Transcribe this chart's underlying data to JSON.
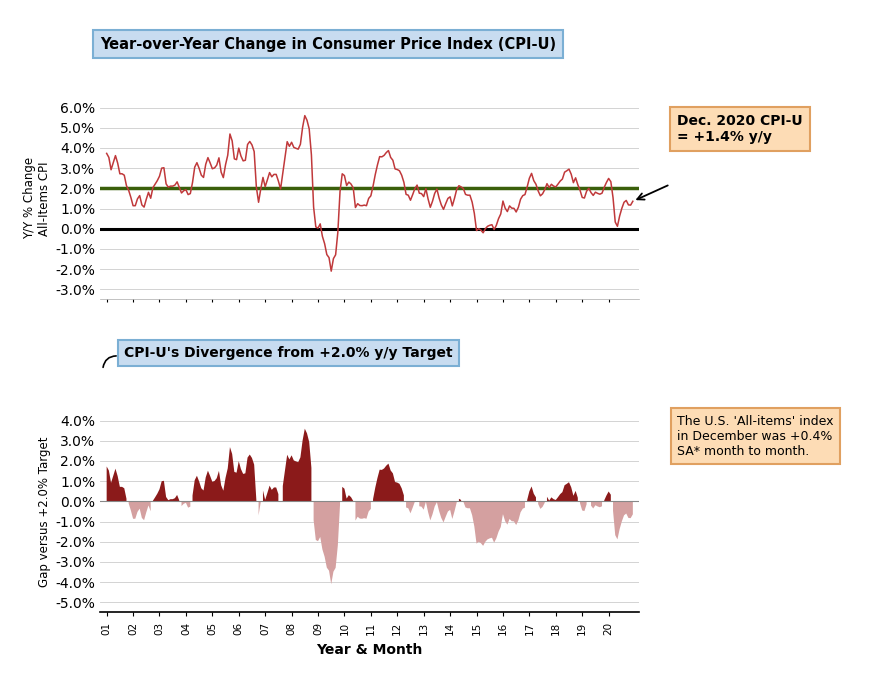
{
  "title1": "Year-over-Year Change in Consumer Price Index (CPI-U)",
  "title2": "CPI-U's Divergence from +2.0% y/y Target",
  "ylabel1": "Y/Y % Change\nAll-Items CPI",
  "ylabel2": "Gap versus +2.0% Target",
  "xlabel": "Year & Month",
  "annotation1": "Dec. 2020 CPI-U\n= +1.4% y/y",
  "annotation2": "The U.S. 'All-items' index\nin December was +0.4%\nSA* month to month.",
  "target_line": 2.0,
  "ylim1": [
    -3.5,
    6.5
  ],
  "ylim2": [
    -5.5,
    4.5
  ],
  "yticks1": [
    -3.0,
    -2.0,
    -1.0,
    0.0,
    1.0,
    2.0,
    3.0,
    4.0,
    5.0,
    6.0
  ],
  "yticks2": [
    -5.0,
    -4.0,
    -3.0,
    -2.0,
    -1.0,
    0.0,
    1.0,
    2.0,
    3.0,
    4.0
  ],
  "line_color": "#C0393B",
  "fill_above_color": "#8B1A1A",
  "fill_below_color": "#D4A0A0",
  "target_color": "#3A5F0B",
  "zero_line_color": "#000000",
  "background_color": "#FFFFFF",
  "title_box_color": "#C8DCF0",
  "title_box_edge": "#7BAFD4",
  "annotation_box_color": "#FDDCB5",
  "annotation_box_edge": "#E0A060",
  "x_labels": [
    "01",
    "02",
    "03",
    "04",
    "05",
    "06",
    "07",
    "08",
    "09",
    "10",
    "11",
    "12",
    "13",
    "14",
    "15",
    "16",
    "17",
    "18",
    "19",
    "20"
  ],
  "cpi_yoy": [
    3.73,
    3.53,
    2.92,
    3.27,
    3.62,
    3.25,
    2.72,
    2.72,
    2.65,
    2.13,
    1.9,
    1.55,
    1.14,
    1.14,
    1.48,
    1.64,
    1.18,
    1.07,
    1.46,
    1.8,
    1.51,
    2.03,
    2.2,
    2.38,
    2.6,
    3.0,
    3.02,
    2.22,
    2.06,
    2.11,
    2.11,
    2.16,
    2.32,
    2.04,
    1.77,
    1.88,
    1.93,
    1.69,
    1.74,
    2.29,
    3.05,
    3.27,
    2.99,
    2.65,
    2.54,
    3.19,
    3.52,
    3.26,
    2.97,
    3.01,
    3.15,
    3.51,
    2.8,
    2.53,
    3.17,
    3.64,
    4.69,
    4.35,
    3.46,
    3.42,
    3.99,
    3.6,
    3.36,
    3.39,
    4.17,
    4.32,
    4.15,
    3.82,
    2.06,
    1.31,
    1.97,
    2.54,
    2.08,
    2.42,
    2.78,
    2.57,
    2.69,
    2.69,
    2.36,
    1.97,
    2.76,
    3.54,
    4.31,
    4.08,
    4.28,
    4.03,
    3.98,
    3.94,
    4.18,
    5.02,
    5.6,
    5.37,
    4.94,
    3.66,
    1.07,
    0.09,
    0.03,
    0.24,
    -0.38,
    -0.74,
    -1.28,
    -1.43,
    -2.1,
    -1.48,
    -1.29,
    -0.18,
    1.84,
    2.72,
    2.63,
    2.14,
    2.31,
    2.21,
    2.02,
    1.05,
    1.24,
    1.15,
    1.14,
    1.17,
    1.14,
    1.5,
    1.63,
    2.11,
    2.68,
    3.16,
    3.57,
    3.56,
    3.63,
    3.77,
    3.87,
    3.53,
    3.39,
    2.96,
    2.93,
    2.87,
    2.65,
    2.3,
    1.7,
    1.66,
    1.41,
    1.69,
    1.99,
    2.16,
    1.76,
    1.74,
    1.59,
    1.98,
    1.47,
    1.06,
    1.36,
    1.75,
    1.96,
    1.52,
    1.18,
    0.96,
    1.24,
    1.5,
    1.58,
    1.13,
    1.51,
    1.95,
    2.13,
    2.07,
    1.99,
    1.7,
    1.66,
    1.66,
    1.32,
    0.76,
    -0.09,
    0.0,
    -0.07,
    -0.2,
    0.0,
    0.12,
    0.17,
    0.2,
    -0.04,
    0.17,
    0.5,
    0.73,
    1.37,
    1.02,
    0.85,
    1.13,
    1.02,
    1.01,
    0.83,
    1.06,
    1.46,
    1.64,
    1.69,
    2.07,
    2.5,
    2.74,
    2.38,
    2.2,
    1.87,
    1.63,
    1.73,
    1.94,
    2.23,
    2.04,
    2.2,
    2.11,
    2.07,
    2.21,
    2.36,
    2.46,
    2.8,
    2.87,
    2.95,
    2.7,
    2.28,
    2.52,
    2.18,
    1.91,
    1.55,
    1.52,
    1.86,
    2.0,
    1.79,
    1.65,
    1.81,
    1.75,
    1.71,
    1.76,
    2.05,
    2.29,
    2.49,
    2.33,
    1.54,
    0.33,
    0.12,
    0.63,
    1.01,
    1.31,
    1.4,
    1.18,
    1.17,
    1.36
  ]
}
